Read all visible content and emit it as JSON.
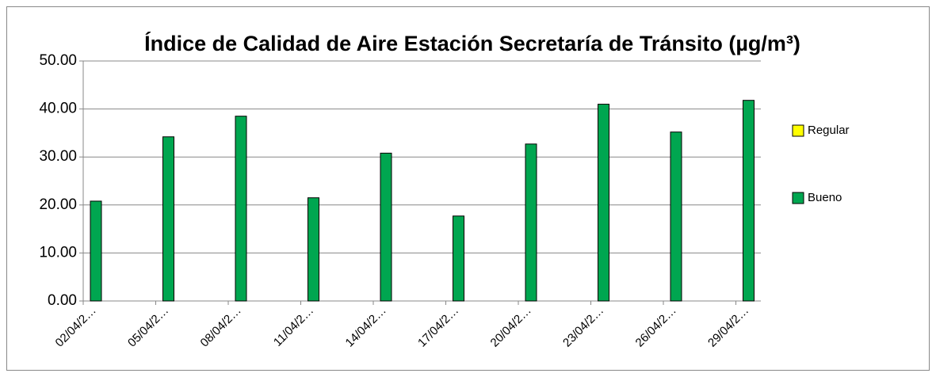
{
  "chart_data": {
    "type": "bar",
    "title": "Índice de Calidad de Aire Estación Secretaría de Tránsito (µg/m³)",
    "categories": [
      "02/04/2…",
      "05/04/2…",
      "08/04/2…",
      "11/04/2…",
      "14/04/2…",
      "17/04/2…",
      "20/04/2…",
      "23/04/2…",
      "26/04/2…",
      "29/04/2…"
    ],
    "series": [
      {
        "name": "Regular",
        "color": "#ffff00",
        "values": [
          null,
          null,
          null,
          null,
          null,
          null,
          null,
          null,
          null,
          null
        ]
      },
      {
        "name": "Bueno",
        "color": "#00a650",
        "values": [
          20.8,
          34.2,
          38.5,
          21.5,
          30.8,
          17.7,
          32.7,
          41.0,
          35.2,
          41.8
        ]
      }
    ],
    "ylim": [
      0,
      50
    ],
    "yticks": [
      {
        "value": 0,
        "label": "0.00"
      },
      {
        "value": 10,
        "label": "10.00"
      },
      {
        "value": 20,
        "label": "20.00"
      },
      {
        "value": 30,
        "label": "30.00"
      },
      {
        "value": 40,
        "label": "40.00"
      },
      {
        "value": 50,
        "label": "50.00"
      }
    ],
    "grid": true
  }
}
